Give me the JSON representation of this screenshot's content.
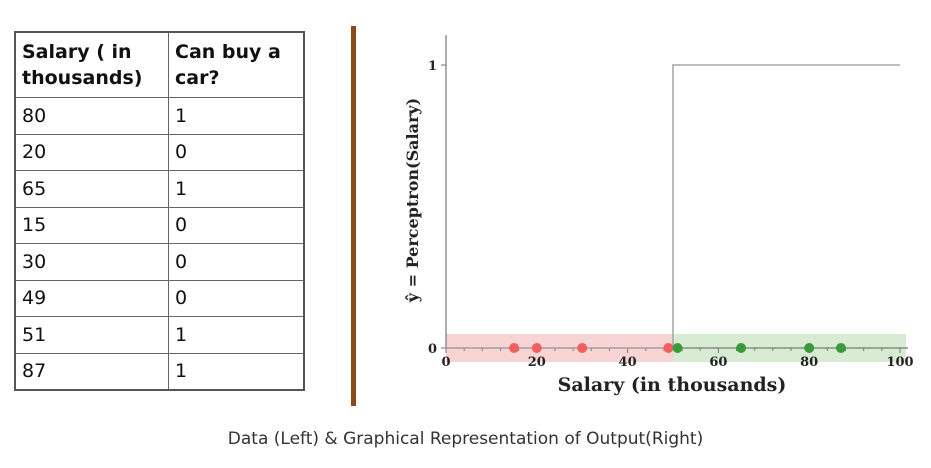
{
  "table": {
    "headers": [
      "Salary ( in thousands)",
      "Can buy a car?"
    ],
    "rows": [
      [
        "80",
        "1"
      ],
      [
        "20",
        "0"
      ],
      [
        "65",
        "1"
      ],
      [
        "15",
        "0"
      ],
      [
        "30",
        "0"
      ],
      [
        "49",
        "0"
      ],
      [
        "51",
        "1"
      ],
      [
        "87",
        "1"
      ]
    ]
  },
  "caption": "Data (Left) & Graphical Representation of Output(Right)",
  "colors": {
    "divider": "#8b4a1c",
    "class0_point": "#f06060",
    "class1_point": "#3a9a3a",
    "class0_band": "#f9d4d4",
    "class1_band": "#d8ecd4",
    "step_line": "#a8a8a8"
  },
  "chart_data": {
    "type": "scatter",
    "xlabel": "Salary (in thousands)",
    "ylabel": "ŷ = Perceptron(Salary)",
    "xlim": [
      0,
      100
    ],
    "ylim": [
      0,
      1
    ],
    "xticks": [
      0,
      20,
      40,
      60,
      80,
      100
    ],
    "yticks": [
      0,
      1
    ],
    "threshold": 50,
    "step_function": {
      "x": [
        0,
        50,
        50,
        100
      ],
      "y": [
        0,
        0,
        1,
        1
      ]
    },
    "series": [
      {
        "class": 0,
        "x": [
          15,
          20,
          30,
          49
        ],
        "y": [
          0,
          0,
          0,
          0
        ]
      },
      {
        "class": 1,
        "x": [
          51,
          65,
          80,
          87
        ],
        "y": [
          0,
          0,
          0,
          0
        ]
      }
    ]
  }
}
